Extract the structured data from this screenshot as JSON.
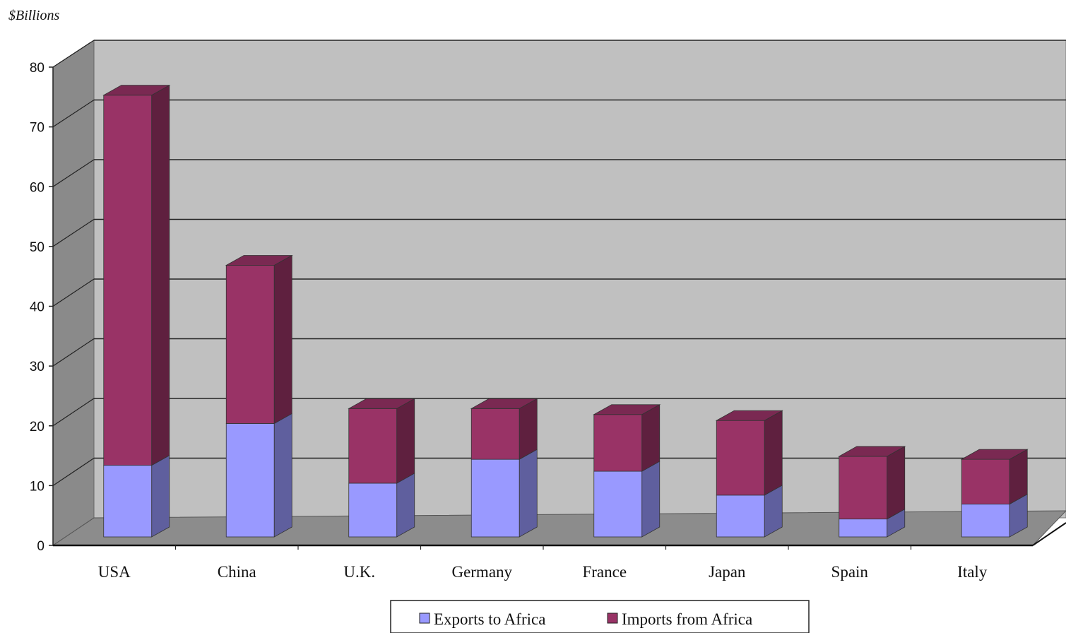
{
  "chart_data": {
    "type": "bar",
    "stacked": true,
    "three_d": true,
    "title": "",
    "xlabel": "",
    "ylabel": "$Billions",
    "ylim": [
      0,
      80
    ],
    "yticks": [
      0,
      10,
      20,
      30,
      40,
      50,
      60,
      70,
      80
    ],
    "grid": true,
    "legend_position": "bottom",
    "categories": [
      "USA",
      "China",
      "U.K.",
      "Germany",
      "France",
      "Japan",
      "Spain",
      "Italy"
    ],
    "series": [
      {
        "name": "Exports to Africa",
        "color": "#9999ff",
        "values": [
          12,
          19,
          9,
          13,
          11,
          7,
          3,
          5.5
        ]
      },
      {
        "name": "Imports from Africa",
        "color": "#993366",
        "values": [
          62,
          26.5,
          12.5,
          8.5,
          9.5,
          12.5,
          10.5,
          7.5
        ]
      }
    ]
  }
}
